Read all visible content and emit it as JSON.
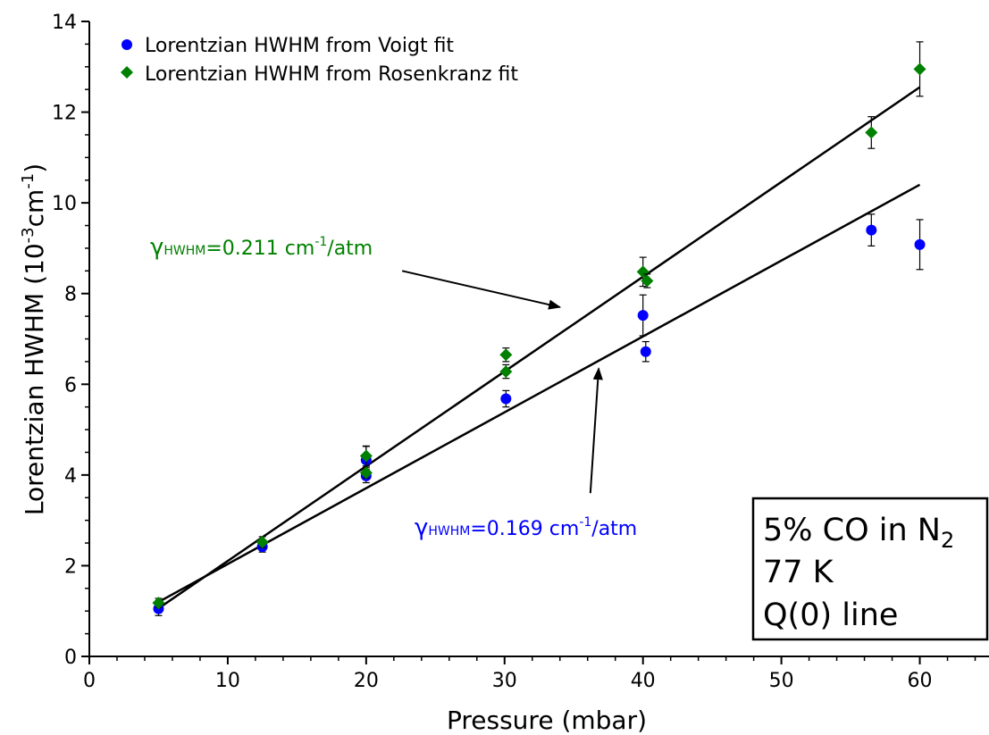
{
  "chart_data": {
    "type": "scatter",
    "xlabel": "Pressure (mbar)",
    "ylabel": {
      "main": "Lorentzian HWHM (10",
      "exp1": "-3",
      "mid": "cm",
      "exp2": "-1",
      "end": ")"
    },
    "xlim": [
      0,
      65
    ],
    "ylim": [
      0,
      14
    ],
    "xticks": [
      "0",
      "10",
      "20",
      "30",
      "40",
      "50",
      "60"
    ],
    "yticks": [
      "0",
      "2",
      "4",
      "6",
      "8",
      "10",
      "12",
      "14"
    ],
    "grid": false,
    "legend_position": "top-left",
    "series": [
      {
        "name": "Lorentzian HWHM from Voigt fit",
        "marker": "circle",
        "color": "#0000ff",
        "points": [
          {
            "x": 5.0,
            "y": 1.05,
            "err": 0.15
          },
          {
            "x": 12.5,
            "y": 2.42,
            "err": 0.12
          },
          {
            "x": 20.0,
            "y": 3.98,
            "err": 0.15
          },
          {
            "x": 20.0,
            "y": 4.33,
            "err": 0.3
          },
          {
            "x": 30.1,
            "y": 5.68,
            "err": 0.18
          },
          {
            "x": 40.0,
            "y": 7.52,
            "err": 0.45
          },
          {
            "x": 40.2,
            "y": 6.72,
            "err": 0.22
          },
          {
            "x": 56.5,
            "y": 9.4,
            "err": 0.35
          },
          {
            "x": 60.0,
            "y": 9.08,
            "err": 0.55
          }
        ]
      },
      {
        "name": "Lorentzian HWHM from Rosenkranz fit",
        "marker": "diamond",
        "color": "#008000",
        "points": [
          {
            "x": 5.0,
            "y": 1.18,
            "err": 0.1
          },
          {
            "x": 12.5,
            "y": 2.52,
            "err": 0.12
          },
          {
            "x": 20.0,
            "y": 4.05,
            "err": 0.12
          },
          {
            "x": 20.0,
            "y": 4.42,
            "err": 0.22
          },
          {
            "x": 30.1,
            "y": 6.28,
            "err": 0.15
          },
          {
            "x": 30.1,
            "y": 6.65,
            "err": 0.15
          },
          {
            "x": 40.0,
            "y": 8.48,
            "err": 0.32
          },
          {
            "x": 40.3,
            "y": 8.28,
            "err": 0.15
          },
          {
            "x": 56.5,
            "y": 11.55,
            "err": 0.35
          },
          {
            "x": 60.0,
            "y": 12.95,
            "err": 0.6
          }
        ]
      }
    ],
    "fit_lines": [
      {
        "color": "#000000",
        "x": [
          5,
          60
        ],
        "y": [
          1.06,
          12.55
        ]
      },
      {
        "color": "#000000",
        "x": [
          5,
          60
        ],
        "y": [
          1.2,
          10.4
        ]
      }
    ],
    "annotations": [
      {
        "id": "rosenkranz",
        "gamma": "γ",
        "sub": "HWHM",
        "text": "=0.211 cm",
        "sup": "-1",
        "tail": "/atm",
        "color": "#008000",
        "arrow_from": [
          22.6,
          8.5
        ],
        "arrow_to": [
          34.0,
          7.7
        ]
      },
      {
        "id": "voigt",
        "gamma": "γ",
        "sub": "HWHM",
        "text": "=0.169 cm",
        "sup": "-1",
        "tail": "/atm",
        "color": "#0000ff",
        "arrow_from": [
          36.2,
          3.6
        ],
        "arrow_to": [
          36.8,
          6.35
        ]
      }
    ],
    "info_box": {
      "line1_main": "5% CO in N",
      "line1_sub": "2",
      "line2": "77 K",
      "line3": "Q(0) line"
    }
  }
}
